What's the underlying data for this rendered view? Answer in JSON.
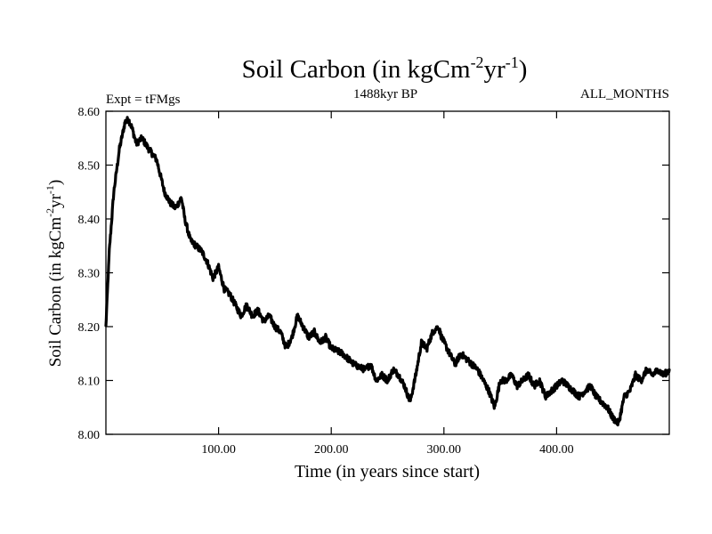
{
  "chart_data": {
    "type": "line",
    "title_main": "Soil Carbon (in kgCm",
    "title_sup1": "-2",
    "title_mid": "yr",
    "title_sup2": "-1",
    "title_end": ")",
    "subtitle_left": "Expt = tFMgs",
    "subtitle_center": "1488kyr BP",
    "subtitle_right": "ALL_MONTHS",
    "xlabel": "Time (in years since start)",
    "ylabel_main": "Soil Carbon (in kgCm",
    "ylabel_sup1": "-2",
    "ylabel_mid": "yr",
    "ylabel_sup2": "-1",
    "ylabel_end": ")",
    "xlim": [
      0,
      500
    ],
    "ylim": [
      8.0,
      8.6
    ],
    "x_ticks": [
      100,
      200,
      300,
      400
    ],
    "x_tick_labels": [
      "100.00",
      "200.00",
      "300.00",
      "400.00"
    ],
    "y_ticks": [
      8.0,
      8.1,
      8.2,
      8.3,
      8.4,
      8.5,
      8.6
    ],
    "y_tick_labels": [
      "8.00",
      "8.10",
      "8.20",
      "8.30",
      "8.40",
      "8.50",
      "8.60"
    ],
    "line_color": "#000000",
    "series": [
      {
        "name": "Soil Carbon",
        "x": [
          0,
          3,
          7,
          12,
          17,
          20,
          23,
          27,
          32,
          38,
          45,
          52,
          57,
          62,
          67,
          70,
          75,
          80,
          85,
          90,
          95,
          100,
          105,
          110,
          115,
          120,
          125,
          130,
          135,
          140,
          145,
          150,
          155,
          160,
          165,
          170,
          175,
          180,
          185,
          190,
          195,
          200,
          210,
          220,
          230,
          235,
          240,
          245,
          250,
          255,
          260,
          265,
          270,
          275,
          280,
          285,
          290,
          295,
          298,
          305,
          310,
          315,
          320,
          325,
          330,
          335,
          340,
          345,
          350,
          355,
          360,
          365,
          370,
          375,
          380,
          385,
          390,
          395,
          400,
          405,
          410,
          415,
          420,
          425,
          430,
          435,
          440,
          445,
          450,
          455,
          460,
          465,
          470,
          475,
          480,
          485,
          490,
          495,
          500
        ],
        "values": [
          8.2,
          8.34,
          8.45,
          8.53,
          8.58,
          8.585,
          8.57,
          8.54,
          8.55,
          8.53,
          8.51,
          8.45,
          8.43,
          8.42,
          8.44,
          8.4,
          8.36,
          8.35,
          8.34,
          8.32,
          8.29,
          8.31,
          8.27,
          8.26,
          8.24,
          8.22,
          8.24,
          8.22,
          8.23,
          8.21,
          8.22,
          8.2,
          8.19,
          8.16,
          8.18,
          8.22,
          8.2,
          8.18,
          8.19,
          8.17,
          8.18,
          8.16,
          8.15,
          8.13,
          8.12,
          8.13,
          8.1,
          8.11,
          8.1,
          8.12,
          8.11,
          8.09,
          8.06,
          8.11,
          8.17,
          8.16,
          8.19,
          8.2,
          8.18,
          8.15,
          8.13,
          8.15,
          8.14,
          8.13,
          8.12,
          8.1,
          8.08,
          8.05,
          8.1,
          8.1,
          8.11,
          8.09,
          8.1,
          8.11,
          8.09,
          8.1,
          8.07,
          8.08,
          8.09,
          8.1,
          8.09,
          8.08,
          8.07,
          8.08,
          8.09,
          8.07,
          8.06,
          8.05,
          8.03,
          8.02,
          8.07,
          8.08,
          8.11,
          8.1,
          8.12,
          8.11,
          8.12,
          8.11,
          8.12
        ]
      }
    ]
  }
}
